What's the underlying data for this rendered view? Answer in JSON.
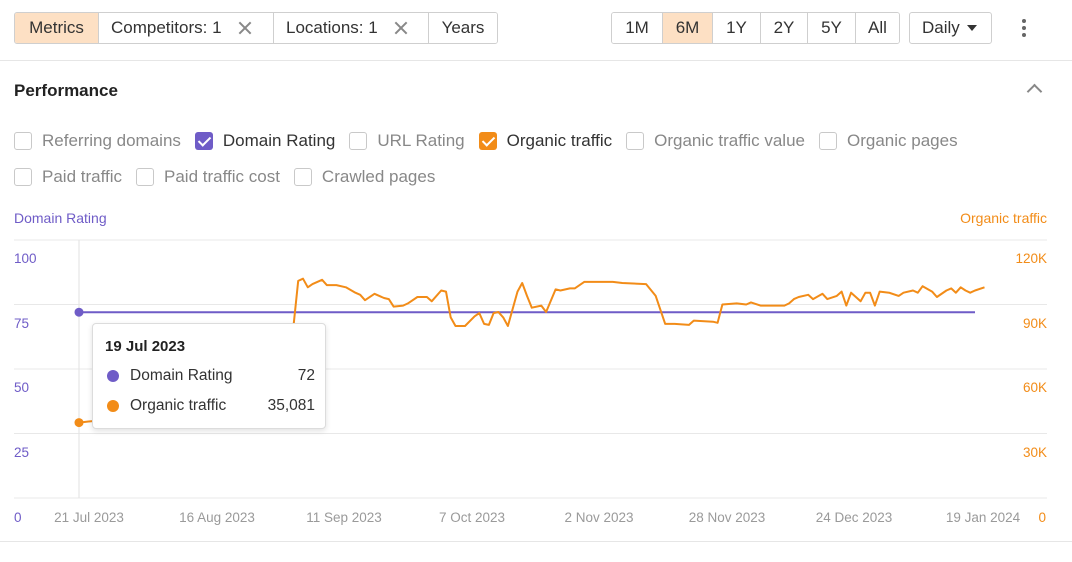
{
  "toolbar": {
    "metrics_label": "Metrics",
    "competitors_label": "Competitors: 1",
    "locations_label": "Locations: 1",
    "years_label": "Years",
    "ranges": [
      "1M",
      "6M",
      "1Y",
      "2Y",
      "5Y",
      "All"
    ],
    "active_range": "6M",
    "interval_label": "Daily"
  },
  "section": {
    "title": "Performance"
  },
  "metric_options": [
    {
      "label": "Referring domains",
      "checked": false
    },
    {
      "label": "Domain Rating",
      "checked": true,
      "color": "#6f5cc7"
    },
    {
      "label": "URL Rating",
      "checked": false
    },
    {
      "label": "Organic traffic",
      "checked": true,
      "color": "#f28c18"
    },
    {
      "label": "Organic traffic value",
      "checked": false
    },
    {
      "label": "Organic pages",
      "checked": false
    },
    {
      "label": "Paid traffic",
      "checked": false
    },
    {
      "label": "Paid traffic cost",
      "checked": false
    },
    {
      "label": "Crawled pages",
      "checked": false
    }
  ],
  "colors": {
    "domain_rating": "#6f5cc7",
    "organic_traffic": "#f28c18",
    "active_bg": "#fde0c4"
  },
  "chart_data": {
    "type": "line",
    "left_axis": {
      "title": "Domain Rating",
      "ticks": [
        "100",
        "75",
        "50",
        "25",
        "0"
      ],
      "range": [
        0,
        100
      ]
    },
    "right_axis": {
      "title": "Organic traffic",
      "ticks": [
        "120K",
        "90K",
        "60K",
        "30K",
        "0"
      ],
      "range": [
        0,
        120000
      ]
    },
    "x_ticks": [
      "21 Jul 2023",
      "16 Aug 2023",
      "11 Sep 2023",
      "7 Oct 2023",
      "2 Nov 2023",
      "28 Nov 2023",
      "24 Dec 2023",
      "19 Jan 2024"
    ],
    "x_start": "2023-07-19",
    "x_end": "2024-01-23",
    "series": [
      {
        "name": "Domain Rating",
        "axis": "left",
        "points": [
          [
            "2023-07-19",
            72
          ],
          [
            "2024-01-23",
            72
          ]
        ]
      },
      {
        "name": "Organic traffic",
        "axis": "right",
        "points": [
          [
            "2023-07-19",
            35081
          ],
          [
            "2023-07-21",
            35600
          ],
          [
            "2023-07-24",
            36200
          ],
          [
            "2023-09-02",
            80000
          ],
          [
            "2023-09-03",
            101000
          ],
          [
            "2023-09-04",
            102000
          ],
          [
            "2023-09-05",
            98000
          ],
          [
            "2023-09-06",
            99500
          ],
          [
            "2023-09-08",
            101500
          ],
          [
            "2023-09-09",
            99000
          ],
          [
            "2023-09-11",
            99000
          ],
          [
            "2023-09-13",
            98000
          ],
          [
            "2023-09-15",
            95500
          ],
          [
            "2023-09-16",
            94500
          ],
          [
            "2023-09-17",
            92000
          ],
          [
            "2023-09-19",
            95000
          ],
          [
            "2023-09-21",
            93000
          ],
          [
            "2023-09-22",
            92500
          ],
          [
            "2023-09-23",
            89000
          ],
          [
            "2023-09-25",
            89500
          ],
          [
            "2023-09-26",
            90500
          ],
          [
            "2023-09-28",
            93500
          ],
          [
            "2023-09-30",
            93500
          ],
          [
            "2023-10-01",
            91500
          ],
          [
            "2023-10-03",
            96500
          ],
          [
            "2023-10-04",
            96000
          ],
          [
            "2023-10-05",
            84000
          ],
          [
            "2023-10-06",
            80000
          ],
          [
            "2023-10-08",
            80000
          ],
          [
            "2023-10-10",
            84500
          ],
          [
            "2023-10-11",
            86000
          ],
          [
            "2023-10-12",
            81000
          ],
          [
            "2023-10-13",
            80500
          ],
          [
            "2023-10-14",
            86000
          ],
          [
            "2023-10-15",
            86500
          ],
          [
            "2023-10-16",
            84000
          ],
          [
            "2023-10-17",
            80000
          ],
          [
            "2023-10-19",
            96000
          ],
          [
            "2023-10-20",
            100000
          ],
          [
            "2023-10-21",
            94000
          ],
          [
            "2023-10-22",
            88500
          ],
          [
            "2023-10-24",
            89500
          ],
          [
            "2023-10-25",
            86500
          ],
          [
            "2023-10-27",
            97000
          ],
          [
            "2023-10-28",
            96500
          ],
          [
            "2023-10-30",
            97500
          ],
          [
            "2023-10-31",
            97500
          ],
          [
            "2023-11-02",
            100500
          ],
          [
            "2023-11-08",
            100500
          ],
          [
            "2023-11-10",
            100000
          ],
          [
            "2023-11-15",
            99500
          ],
          [
            "2023-11-17",
            94000
          ],
          [
            "2023-11-19",
            81000
          ],
          [
            "2023-11-21",
            81000
          ],
          [
            "2023-11-24",
            80500
          ],
          [
            "2023-11-25",
            82500
          ],
          [
            "2023-11-29",
            82000
          ],
          [
            "2023-11-30",
            81500
          ],
          [
            "2023-12-01",
            90000
          ],
          [
            "2023-12-04",
            90500
          ],
          [
            "2023-12-06",
            90000
          ],
          [
            "2023-12-07",
            91000
          ],
          [
            "2023-12-09",
            89500
          ],
          [
            "2023-12-14",
            89500
          ],
          [
            "2023-12-15",
            90500
          ],
          [
            "2023-12-16",
            92500
          ],
          [
            "2023-12-17",
            93500
          ],
          [
            "2023-12-19",
            94500
          ],
          [
            "2023-12-20",
            92500
          ],
          [
            "2023-12-22",
            95000
          ],
          [
            "2023-12-23",
            92500
          ],
          [
            "2023-12-25",
            94000
          ],
          [
            "2023-12-26",
            96000
          ],
          [
            "2023-12-27",
            89500
          ],
          [
            "2023-12-28",
            95500
          ],
          [
            "2023-12-30",
            91500
          ],
          [
            "2023-12-31",
            95500
          ],
          [
            "2024-01-01",
            95500
          ],
          [
            "2024-01-02",
            89500
          ],
          [
            "2024-01-03",
            96000
          ],
          [
            "2024-01-05",
            95500
          ],
          [
            "2024-01-07",
            94000
          ],
          [
            "2024-01-08",
            95500
          ],
          [
            "2024-01-10",
            96500
          ],
          [
            "2024-01-11",
            95500
          ],
          [
            "2024-01-12",
            98500
          ],
          [
            "2024-01-14",
            96000
          ],
          [
            "2024-01-15",
            93500
          ],
          [
            "2024-01-17",
            96500
          ],
          [
            "2024-01-18",
            97500
          ],
          [
            "2024-01-19",
            95500
          ],
          [
            "2024-01-20",
            98000
          ],
          [
            "2024-01-21",
            96500
          ],
          [
            "2024-01-22",
            95500
          ],
          [
            "2024-01-23",
            96500
          ],
          [
            "2024-01-25",
            98000
          ]
        ]
      }
    ],
    "grid": true
  },
  "tooltip": {
    "date": "19 Jul 2023",
    "rows": [
      {
        "label": "Domain Rating",
        "value": "72"
      },
      {
        "label": "Organic traffic",
        "value": "35,081"
      }
    ]
  }
}
